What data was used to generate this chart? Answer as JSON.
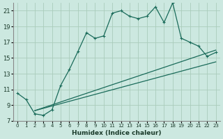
{
  "xlabel": "Humidex (Indice chaleur)",
  "xlim": [
    -0.5,
    23.5
  ],
  "ylim": [
    7,
    22
  ],
  "yticks": [
    7,
    9,
    11,
    13,
    15,
    17,
    19,
    21
  ],
  "xticks": [
    0,
    1,
    2,
    3,
    4,
    5,
    6,
    7,
    8,
    9,
    10,
    11,
    12,
    13,
    14,
    15,
    16,
    17,
    18,
    19,
    20,
    21,
    22,
    23
  ],
  "bg_color": "#cce8e0",
  "grid_color": "#aaccbb",
  "line_color": "#1a6b5a",
  "line1_x": [
    0,
    1,
    2,
    3,
    4,
    5,
    6,
    7,
    8,
    9,
    10,
    11,
    12,
    13,
    14,
    15,
    16,
    17,
    18,
    19,
    20,
    21,
    22,
    23
  ],
  "line1_y": [
    10.5,
    9.7,
    7.9,
    7.7,
    8.4,
    11.5,
    13.5,
    15.8,
    18.2,
    17.5,
    17.8,
    20.7,
    21.0,
    20.3,
    20.0,
    20.3,
    21.5,
    19.5,
    22.0,
    17.5,
    17.0,
    16.5,
    15.2,
    15.7
  ],
  "line2_x": [
    2,
    23
  ],
  "line2_y": [
    8.3,
    16.0
  ],
  "line3_x": [
    2,
    23
  ],
  "line3_y": [
    8.3,
    14.5
  ]
}
